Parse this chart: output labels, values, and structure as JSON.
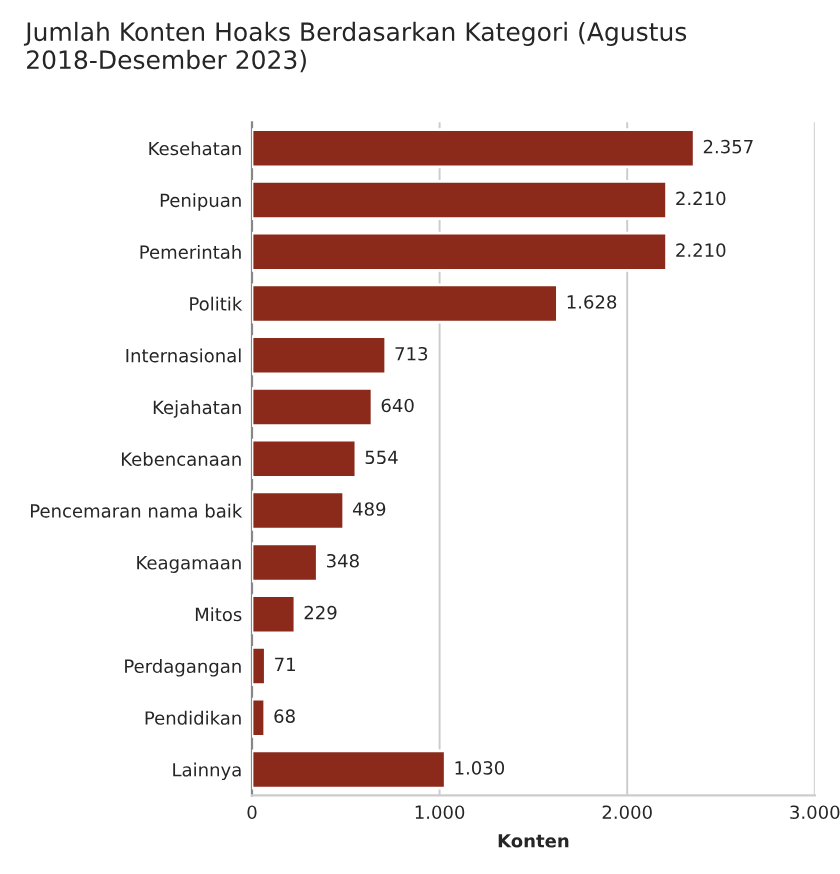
{
  "chart_data": {
    "type": "bar",
    "orientation": "horizontal",
    "title": "Jumlah Konten Hoaks Berdasarkan Kategori (Agustus 2018-Desember 2023)",
    "xlabel": "Konten",
    "categories": [
      "Kesehatan",
      "Penipuan",
      "Pemerintah",
      "Politik",
      "Internasional",
      "Kejahatan",
      "Kebencanaan",
      "Pencemaran nama baik",
      "Keagamaan",
      "Mitos",
      "Perdagangan",
      "Pendidikan",
      "Lainnya"
    ],
    "values": [
      2357,
      2210,
      2210,
      1628,
      713,
      640,
      554,
      489,
      348,
      229,
      71,
      68,
      1030
    ],
    "value_labels": [
      "2.357",
      "2.210",
      "2.210",
      "1.628",
      "713",
      "640",
      "554",
      "489",
      "348",
      "229",
      "71",
      "68",
      "1.030"
    ],
    "color": "#8b2a1a",
    "xlim": [
      0,
      3000
    ],
    "xticks": [
      0,
      {
        "value": 1000,
        "label": "1.000"
      },
      {
        "value": 2000,
        "label": "2.000"
      },
      {
        "value": 3000,
        "label": "3.000"
      }
    ],
    "grid": "x"
  }
}
